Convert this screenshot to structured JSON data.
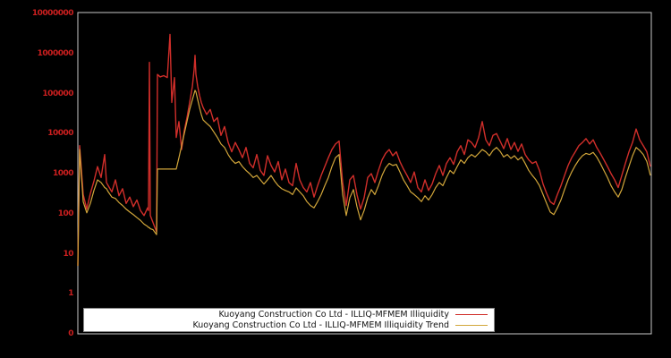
{
  "figure": {
    "background": "#000000",
    "frame_color": "#c8c8c8"
  },
  "y_axis": {
    "tick_color": "#cc1f1f",
    "tick_labels": [
      "10000000",
      "1000000",
      "100000",
      "10000",
      "1000",
      "100",
      "10",
      "1",
      "0"
    ]
  },
  "legend": {
    "background": "#ffffff",
    "entries": [
      {
        "label": "Kuoyang Construction Co Ltd - ILLIQ-MFMEM Illiquidity",
        "color": "#d02e2a"
      },
      {
        "label": "Kuoyang Construction Co Ltd - ILLIQ-MFMEM Illiquidity Trend",
        "color": "#d2a63a"
      }
    ]
  },
  "chart_data": {
    "type": "line",
    "title": "",
    "xlabel": "",
    "ylabel": "",
    "yscale": "log",
    "ylim": [
      0,
      10000000
    ],
    "grid": false,
    "legend_position": "bottom-center",
    "x_unit": "pixels from left edge of plot area (no x tick labels shown)",
    "x": [
      0,
      2,
      6,
      10,
      14,
      18,
      22,
      26,
      30,
      32,
      34,
      38,
      42,
      46,
      50,
      54,
      58,
      62,
      66,
      70,
      74,
      78,
      79,
      80,
      81,
      84,
      88,
      89,
      92,
      96,
      100,
      103,
      105,
      108,
      110,
      113,
      116,
      119,
      122,
      125,
      128,
      130,
      131,
      132,
      134,
      136,
      138,
      140,
      144,
      148,
      152,
      156,
      160,
      164,
      168,
      172,
      176,
      180,
      184,
      188,
      192,
      196,
      200,
      204,
      208,
      212,
      216,
      220,
      224,
      228,
      232,
      236,
      240,
      244,
      248,
      252,
      256,
      260,
      264,
      268,
      272,
      276,
      280,
      284,
      288,
      292,
      296,
      300,
      304,
      308,
      312,
      316,
      320,
      324,
      328,
      332,
      336,
      340,
      344,
      348,
      352,
      356,
      360,
      364,
      368,
      372,
      376,
      380,
      384,
      388,
      392,
      396,
      400,
      404,
      408,
      412,
      416,
      420,
      424,
      428,
      432,
      436,
      440,
      444,
      448,
      452,
      456,
      460,
      464,
      468,
      472,
      476,
      480,
      484,
      488,
      492,
      496,
      500,
      504,
      508,
      512,
      516,
      520,
      524,
      528,
      532,
      536,
      540,
      544,
      548,
      552,
      556,
      560,
      564,
      568,
      572,
      576,
      580,
      584,
      588,
      592,
      596,
      600,
      604,
      608,
      612,
      616,
      620,
      624,
      628,
      632,
      636,
      640
    ],
    "series": [
      {
        "name": "Kuoyang Construction Co Ltd - ILLIQ-MFMEM Illiquidity",
        "color": "#d02e2a",
        "values": [
          5,
          5000,
          300,
          130,
          320,
          650,
          1500,
          800,
          3000,
          600,
          500,
          350,
          700,
          280,
          420,
          180,
          260,
          150,
          220,
          120,
          90,
          140,
          120,
          600000,
          90,
          60,
          35,
          300000,
          260000,
          280000,
          250000,
          3000000,
          60000,
          250000,
          8000,
          20000,
          4000,
          12000,
          25000,
          60000,
          150000,
          400000,
          900000,
          300000,
          150000,
          90000,
          60000,
          45000,
          30000,
          40000,
          20000,
          25000,
          9000,
          15000,
          6000,
          3500,
          6000,
          4000,
          2500,
          4500,
          1800,
          1400,
          3000,
          1200,
          900,
          2800,
          1600,
          1100,
          2000,
          700,
          1300,
          600,
          500,
          1800,
          700,
          450,
          350,
          600,
          260,
          500,
          900,
          1500,
          2500,
          4000,
          5500,
          6500,
          600,
          160,
          700,
          900,
          300,
          130,
          250,
          800,
          1000,
          600,
          1200,
          2200,
          3200,
          4000,
          2800,
          3500,
          2000,
          1300,
          900,
          600,
          1100,
          450,
          350,
          700,
          380,
          550,
          1000,
          1600,
          900,
          1800,
          2500,
          1700,
          3500,
          5000,
          3000,
          7000,
          6000,
          4500,
          8000,
          20000,
          7000,
          5000,
          9000,
          10000,
          6500,
          4200,
          7500,
          4000,
          6000,
          3600,
          5500,
          3000,
          2200,
          1800,
          2000,
          1200,
          550,
          320,
          200,
          170,
          300,
          500,
          900,
          1600,
          2500,
          3500,
          5000,
          6000,
          7500,
          5500,
          7000,
          4500,
          3200,
          2200,
          1500,
          1000,
          700,
          450,
          900,
          1800,
          3500,
          6000,
          13000,
          7000,
          5000,
          3500,
          1500
        ]
      },
      {
        "name": "Kuoyang Construction Co Ltd - ILLIQ-MFMEM Illiquidity Trend",
        "color": "#d2a63a",
        "values": [
          5,
          4000,
          200,
          105,
          180,
          380,
          700,
          600,
          450,
          420,
          350,
          260,
          240,
          190,
          160,
          130,
          110,
          95,
          80,
          68,
          55,
          48,
          45,
          45,
          42,
          40,
          30,
          1300,
          1300,
          1300,
          1300,
          1300,
          1300,
          1300,
          1300,
          2500,
          5000,
          10000,
          20000,
          40000,
          70000,
          100000,
          120000,
          110000,
          70000,
          45000,
          30000,
          22000,
          18000,
          15000,
          11000,
          8000,
          5500,
          4500,
          3000,
          2200,
          1800,
          2000,
          1500,
          1200,
          1000,
          800,
          900,
          700,
          550,
          700,
          900,
          650,
          500,
          420,
          380,
          350,
          300,
          440,
          350,
          280,
          200,
          160,
          140,
          200,
          300,
          500,
          800,
          1500,
          2500,
          3000,
          300,
          90,
          250,
          400,
          150,
          70,
          120,
          250,
          400,
          300,
          500,
          900,
          1400,
          1800,
          1600,
          1700,
          1100,
          700,
          500,
          350,
          300,
          250,
          200,
          280,
          220,
          300,
          450,
          600,
          500,
          800,
          1200,
          1000,
          1500,
          2200,
          1800,
          2500,
          3000,
          2600,
          3200,
          4000,
          3500,
          2800,
          3800,
          4500,
          3600,
          2600,
          3000,
          2400,
          2800,
          2200,
          2600,
          1800,
          1200,
          900,
          700,
          500,
          300,
          180,
          110,
          95,
          140,
          220,
          400,
          700,
          1100,
          1600,
          2200,
          2800,
          3200,
          3000,
          3400,
          2600,
          1800,
          1200,
          800,
          500,
          350,
          260,
          400,
          800,
          1500,
          2800,
          4500,
          3800,
          3000,
          2000,
          900
        ]
      }
    ]
  }
}
